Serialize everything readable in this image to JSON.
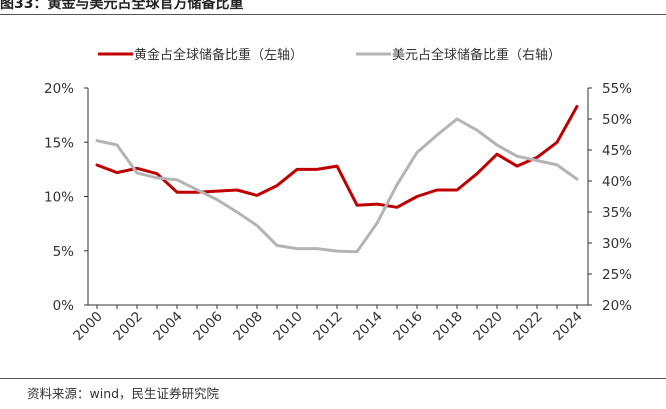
{
  "title": "图33：黄金与美元占全球官方储备比重",
  "source": "资料来源：wind，民生证券研究院",
  "colors": {
    "gold": "#C00000",
    "usd": "#B4B4B4",
    "axis": "#333333",
    "text": "#333333"
  },
  "chart_data": {
    "type": "line",
    "title": "图33：黄金与美元占全球官方储备比重",
    "x": [
      2000,
      2001,
      2002,
      2003,
      2004,
      2005,
      2006,
      2007,
      2008,
      2009,
      2010,
      2011,
      2012,
      2013,
      2014,
      2015,
      2016,
      2017,
      2018,
      2019,
      2020,
      2021,
      2022,
      2023,
      2024
    ],
    "x_ticks": [
      "2000",
      "2002",
      "2004",
      "2006",
      "2008",
      "2010",
      "2012",
      "2014",
      "2016",
      "2018",
      "2020",
      "2022",
      "2024"
    ],
    "y_left": {
      "range": [
        0,
        20
      ],
      "ticks": [
        "0%",
        "5%",
        "10%",
        "15%",
        "20%"
      ]
    },
    "y_right": {
      "range": [
        20,
        55
      ],
      "ticks": [
        "20%",
        "25%",
        "30%",
        "35%",
        "40%",
        "45%",
        "50%",
        "55%"
      ]
    },
    "legend_position": "top",
    "series": [
      {
        "name": "黄金占全球储备比重（左轴）",
        "axis": "left",
        "values": [
          12.9,
          12.2,
          12.6,
          12.1,
          10.4,
          10.4,
          10.5,
          10.6,
          10.1,
          11.0,
          12.5,
          12.5,
          12.8,
          9.2,
          9.3,
          9.0,
          10.0,
          10.6,
          10.6,
          12.1,
          13.9,
          12.8,
          13.6,
          15.0,
          18.3
        ]
      },
      {
        "name": "美元占全球储备比重（右轴）",
        "axis": "right",
        "values": [
          46.5,
          45.8,
          41.3,
          40.5,
          40.2,
          38.6,
          37.0,
          35.0,
          32.8,
          29.6,
          29.1,
          29.1,
          28.7,
          28.6,
          33.2,
          39.4,
          44.6,
          47.4,
          50.0,
          48.2,
          45.8,
          44.0,
          43.3,
          42.6,
          40.3
        ]
      }
    ]
  }
}
